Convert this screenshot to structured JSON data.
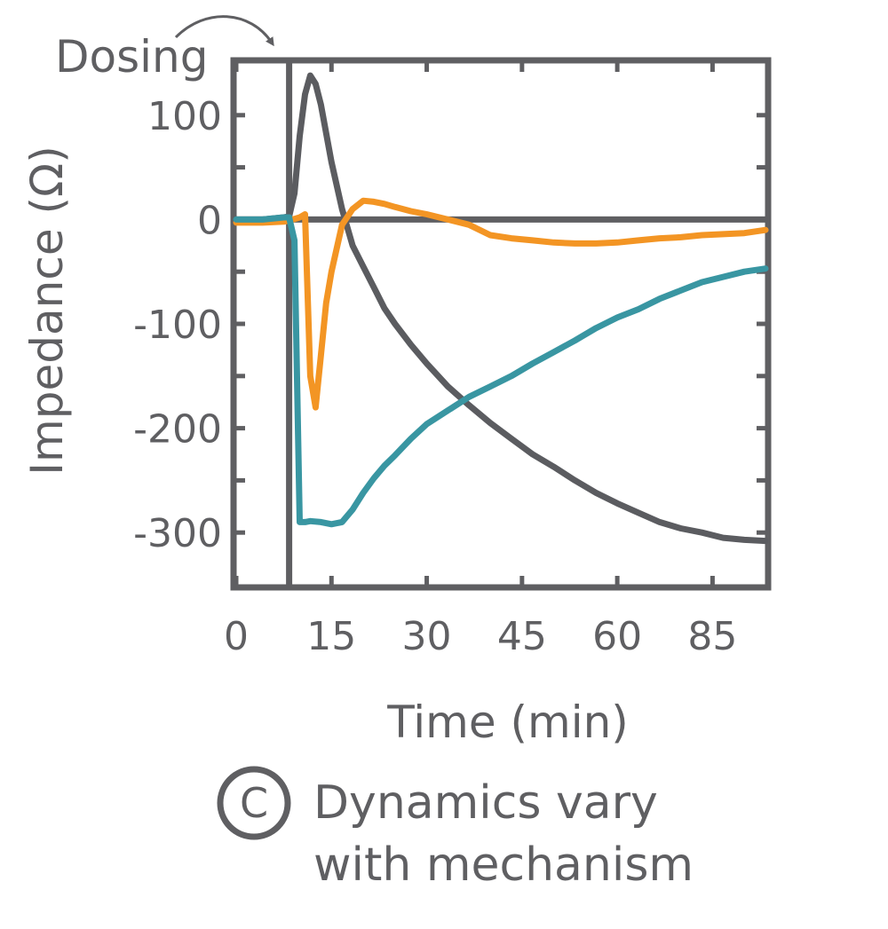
{
  "chart_data": {
    "type": "line",
    "xlabel": "Time (min)",
    "ylabel": "Impedance (Ω)",
    "xlim": [
      0,
      100
    ],
    "ylim": [
      -350,
      150
    ],
    "x_ticks": [
      0,
      15,
      30,
      45,
      60,
      85
    ],
    "x_tick_positions": [
      0,
      18,
      36,
      54,
      72,
      90
    ],
    "y_ticks": [
      100,
      0,
      -100,
      -200,
      -300
    ],
    "dosing": {
      "x": 10,
      "label": "Dosing"
    },
    "series": [
      {
        "color": "#5b5c60",
        "x": [
          0,
          5,
          9,
          10,
          11,
          12,
          13,
          14,
          15,
          16,
          18,
          20,
          22,
          24,
          26,
          28,
          30,
          33,
          36,
          40,
          44,
          48,
          52,
          56,
          60,
          64,
          68,
          72,
          76,
          80,
          84,
          88,
          92,
          96,
          100
        ],
        "y": [
          0,
          0,
          2,
          3,
          25,
          80,
          120,
          138,
          130,
          110,
          55,
          10,
          -25,
          -45,
          -65,
          -85,
          -100,
          -120,
          -138,
          -160,
          -178,
          -195,
          -210,
          -225,
          -237,
          -250,
          -262,
          -272,
          -281,
          -290,
          -296,
          -300,
          -305,
          -307,
          -308
        ]
      },
      {
        "color": "#f39524",
        "x": [
          0,
          5,
          9,
          10,
          12,
          13,
          14,
          15,
          16,
          17,
          18,
          20,
          22,
          24,
          26,
          28,
          30,
          33,
          36,
          40,
          44,
          48,
          52,
          56,
          60,
          64,
          68,
          72,
          76,
          80,
          84,
          88,
          92,
          96,
          100
        ],
        "y": [
          -3,
          -3,
          -2,
          -1,
          2,
          5,
          -150,
          -180,
          -130,
          -80,
          -50,
          -5,
          10,
          18,
          17,
          15,
          12,
          8,
          5,
          0,
          -5,
          -15,
          -18,
          -20,
          -22,
          -23,
          -23,
          -22,
          -20,
          -18,
          -17,
          -15,
          -14,
          -13,
          -10
        ]
      },
      {
        "color": "#3996a2",
        "x": [
          0,
          5,
          9,
          10,
          11,
          12,
          13,
          14,
          16,
          18,
          20,
          22,
          24,
          26,
          28,
          30,
          33,
          36,
          40,
          44,
          48,
          52,
          56,
          60,
          64,
          68,
          72,
          76,
          80,
          84,
          88,
          92,
          96,
          100
        ],
        "y": [
          0,
          0,
          2,
          2,
          -20,
          -290,
          -290,
          -289,
          -290,
          -292,
          -290,
          -278,
          -262,
          -248,
          -236,
          -226,
          -210,
          -196,
          -183,
          -170,
          -160,
          -150,
          -138,
          -127,
          -116,
          -104,
          -94,
          -86,
          -76,
          -68,
          -60,
          -55,
          -50,
          -47
        ]
      }
    ]
  },
  "caption": {
    "badge": "C",
    "line1": "Dynamics vary",
    "line2": "with mechanism"
  }
}
